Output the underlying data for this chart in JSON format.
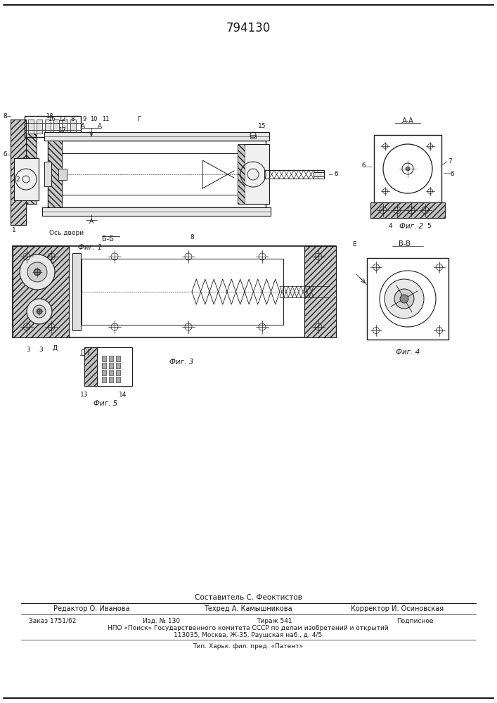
{
  "title": "794130",
  "line_color": "#1a1a1a",
  "footer_line1": "Составитель С. Феоктистов",
  "footer_line2_left": "Редактор О. Иванова",
  "footer_line2_mid": "Техред А. Камышникова",
  "footer_line2_right": "Корректор И. Осиновская",
  "footer_line3_left": "Заказ 1751/62",
  "footer_line3_mid1": "Изд. № 130",
  "footer_line3_mid2": "Тираж 541",
  "footer_line3_right": "Подписное",
  "footer_line4": "НПО «Поиск» Государственного комитета СССР по делам изобретений и открытий",
  "footer_line5": "113035, Москва, Ж-35, Раушская наб., д. 4/5",
  "footer_line6": "Тип. Харьк. фил. пред. «Патент»"
}
